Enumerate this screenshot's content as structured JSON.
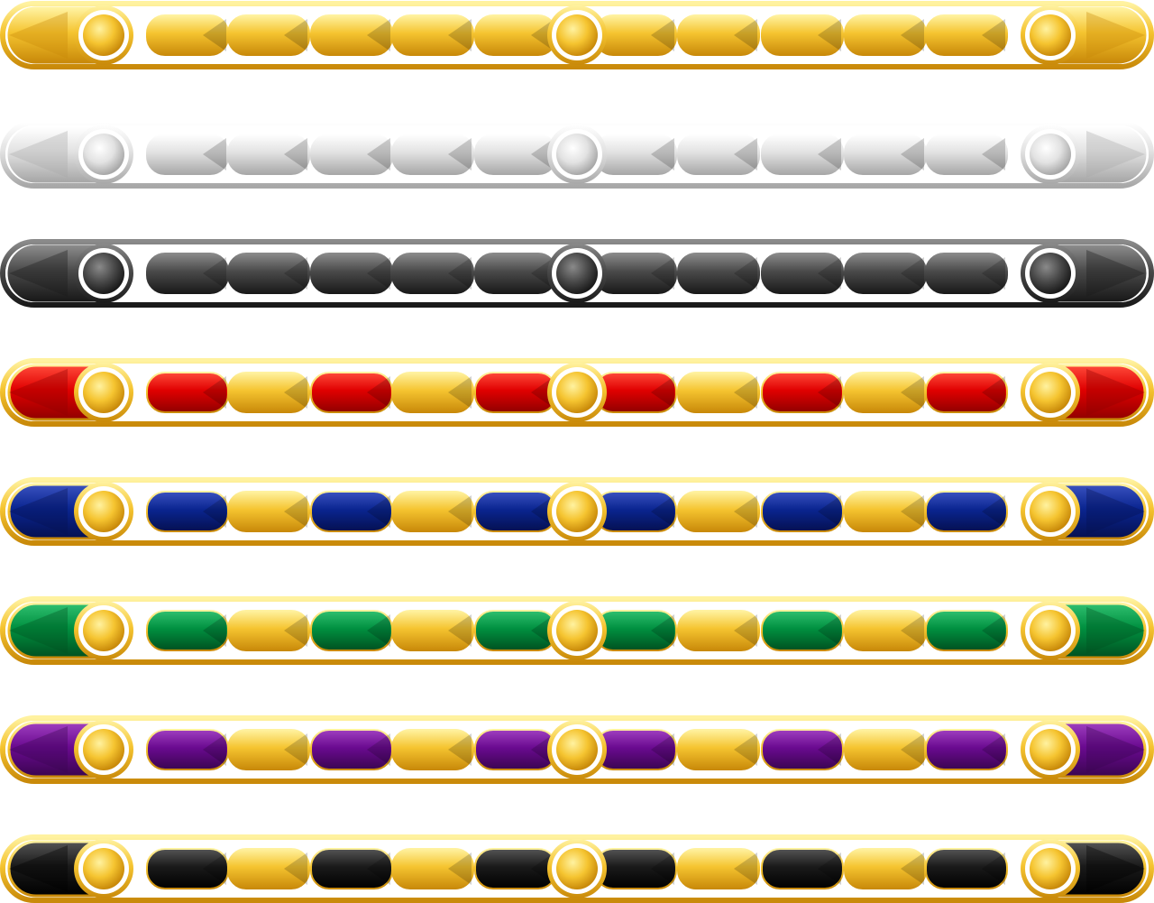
{
  "bars": [
    {
      "name": "gold",
      "frame": [
        "#fff2a0",
        "#f5c430",
        "#c98a0a"
      ],
      "accent": [
        "#fff2a0",
        "#f5c430",
        "#c98a0a"
      ]
    },
    {
      "name": "silver",
      "frame": [
        "#ffffff",
        "#e2e2e2",
        "#a8a8a8"
      ],
      "accent": [
        "#ffffff",
        "#e2e2e2",
        "#a8a8a8"
      ]
    },
    {
      "name": "dark-gray",
      "frame": [
        "#8a8a8a",
        "#4a4a4a",
        "#1a1a1a"
      ],
      "accent": [
        "#8a8a8a",
        "#4a4a4a",
        "#1a1a1a"
      ]
    },
    {
      "name": "red",
      "frame": [
        "#fff2a0",
        "#f5c430",
        "#c98a0a"
      ],
      "accent": [
        "#ff4a3a",
        "#e00000",
        "#900000"
      ]
    },
    {
      "name": "blue",
      "frame": [
        "#fff2a0",
        "#f5c430",
        "#c98a0a"
      ],
      "accent": [
        "#3a52c0",
        "#0a2590",
        "#051050"
      ]
    },
    {
      "name": "green",
      "frame": [
        "#fff2a0",
        "#f5c430",
        "#c98a0a"
      ],
      "accent": [
        "#30c070",
        "#009040",
        "#005020"
      ]
    },
    {
      "name": "purple",
      "frame": [
        "#fff2a0",
        "#f5c430",
        "#c98a0a"
      ],
      "accent": [
        "#a040c0",
        "#6a0a90",
        "#3a0550"
      ]
    },
    {
      "name": "black",
      "frame": [
        "#fff2a0",
        "#f5c430",
        "#c98a0a"
      ],
      "accent": [
        "#555555",
        "#1a1a1a",
        "#000000"
      ]
    }
  ]
}
